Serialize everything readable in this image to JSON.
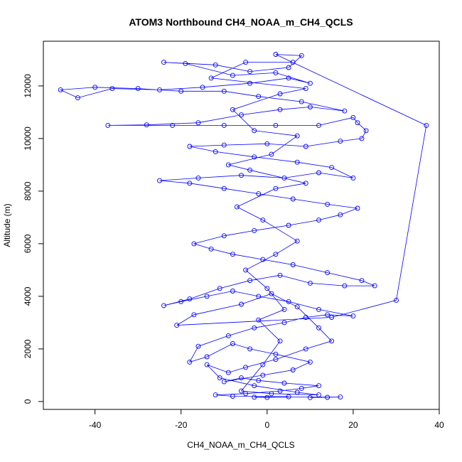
{
  "chart_data": {
    "type": "scatter",
    "title": "ATOM3 Northbound CH4_NOAA_m_CH4_QCLS",
    "xlabel": "CH4_NOAA_m_CH4_QCLS",
    "ylabel": "Altitude (m)",
    "xlim": [
      -52,
      40
    ],
    "ylim": [
      -300,
      13700
    ],
    "x_ticks": [
      -40,
      -20,
      0,
      20,
      40
    ],
    "y_ticks": [
      0,
      2000,
      4000,
      6000,
      8000,
      10000,
      12000
    ],
    "marker": "open-circle",
    "connected": true,
    "color": "#0000ff",
    "grid": false,
    "legend": "none",
    "points": [
      [
        10,
        150
      ],
      [
        14,
        160
      ],
      [
        17,
        170
      ],
      [
        -3,
        165
      ],
      [
        0,
        155
      ],
      [
        5,
        180
      ],
      [
        -8,
        200
      ],
      [
        -12,
        250
      ],
      [
        -5,
        300
      ],
      [
        3,
        400
      ],
      [
        8,
        500
      ],
      [
        12,
        600
      ],
      [
        4,
        700
      ],
      [
        -2,
        800
      ],
      [
        -6,
        900
      ],
      [
        -10,
        750
      ],
      [
        -1,
        1000
      ],
      [
        6,
        1200
      ],
      [
        10,
        1500
      ],
      [
        2,
        1800
      ],
      [
        -4,
        2000
      ],
      [
        -8,
        2200
      ],
      [
        -14,
        1700
      ],
      [
        -18,
        1500
      ],
      [
        -16,
        2100
      ],
      [
        -9,
        2500
      ],
      [
        -3,
        2800
      ],
      [
        4,
        3000
      ],
      [
        9,
        3200
      ],
      [
        14,
        3300
      ],
      [
        20,
        3250
      ],
      [
        12,
        3500
      ],
      [
        5,
        3800
      ],
      [
        -2,
        4000
      ],
      [
        -8,
        4200
      ],
      [
        -14,
        4000
      ],
      [
        -20,
        3800
      ],
      [
        -24,
        3650
      ],
      [
        -18,
        3900
      ],
      [
        -11,
        4300
      ],
      [
        -4,
        4600
      ],
      [
        3,
        4800
      ],
      [
        10,
        4500
      ],
      [
        18,
        4400
      ],
      [
        25,
        4400
      ],
      [
        22,
        4600
      ],
      [
        14,
        4900
      ],
      [
        6,
        5200
      ],
      [
        -1,
        5400
      ],
      [
        -8,
        5600
      ],
      [
        -13,
        5800
      ],
      [
        -17,
        6000
      ],
      [
        -10,
        6300
      ],
      [
        -3,
        6500
      ],
      [
        5,
        6700
      ],
      [
        12,
        6900
      ],
      [
        17,
        7100
      ],
      [
        21,
        7350
      ],
      [
        14,
        7500
      ],
      [
        6,
        7700
      ],
      [
        -2,
        7900
      ],
      [
        -10,
        8100
      ],
      [
        -18,
        8300
      ],
      [
        -25,
        8400
      ],
      [
        -16,
        8500
      ],
      [
        -6,
        8600
      ],
      [
        4,
        8500
      ],
      [
        12,
        8700
      ],
      [
        20,
        8500
      ],
      [
        15,
        8900
      ],
      [
        7,
        9100
      ],
      [
        -3,
        9300
      ],
      [
        -12,
        9500
      ],
      [
        -18,
        9700
      ],
      [
        -10,
        9750
      ],
      [
        0,
        9800
      ],
      [
        9,
        9700
      ],
      [
        17,
        9900
      ],
      [
        22,
        10000
      ],
      [
        23,
        10300
      ],
      [
        21,
        10600
      ],
      [
        20,
        10800
      ],
      [
        12,
        10500
      ],
      [
        2,
        10500
      ],
      [
        -10,
        10500
      ],
      [
        -22,
        10500
      ],
      [
        -37,
        10500
      ],
      [
        -28,
        10520
      ],
      [
        -16,
        10600
      ],
      [
        -6,
        10900
      ],
      [
        3,
        11100
      ],
      [
        10,
        11200
      ],
      [
        18,
        11050
      ],
      [
        8,
        11400
      ],
      [
        -2,
        11600
      ],
      [
        -10,
        11800
      ],
      [
        -20,
        11800
      ],
      [
        -30,
        11900
      ],
      [
        -40,
        11950
      ],
      [
        -48,
        11850
      ],
      [
        -44,
        11550
      ],
      [
        -36,
        11900
      ],
      [
        -25,
        11850
      ],
      [
        -15,
        11950
      ],
      [
        -4,
        12100
      ],
      [
        5,
        12300
      ],
      [
        10,
        12100
      ],
      [
        2,
        12500
      ],
      [
        -8,
        12400
      ],
      [
        -19,
        12850
      ],
      [
        -24,
        12900
      ],
      [
        -12,
        12800
      ],
      [
        -4,
        12550
      ],
      [
        5,
        12700
      ],
      [
        8,
        13150
      ],
      [
        2,
        13200
      ],
      [
        37,
        10500
      ],
      [
        30,
        3850
      ],
      [
        15,
        3200
      ],
      [
        -21,
        2900
      ],
      [
        -17,
        3300
      ],
      [
        -6,
        3700
      ],
      [
        1,
        4100
      ],
      [
        7,
        3600
      ],
      [
        12,
        2800
      ],
      [
        15,
        2300
      ],
      [
        9,
        2000
      ],
      [
        2,
        1600
      ],
      [
        -5,
        1300
      ],
      [
        -9,
        1100
      ],
      [
        -14,
        1400
      ],
      [
        -11,
        900
      ],
      [
        -3,
        600
      ],
      [
        7,
        350
      ],
      [
        12,
        250
      ],
      [
        1,
        300
      ],
      [
        -6,
        400
      ],
      [
        -1,
        1400
      ],
      [
        3,
        2300
      ],
      [
        -2,
        3100
      ],
      [
        4,
        3500
      ],
      [
        0,
        4300
      ],
      [
        -5,
        5000
      ],
      [
        2,
        5600
      ],
      [
        7,
        6100
      ],
      [
        -1,
        6900
      ],
      [
        -7,
        7400
      ],
      [
        2,
        8100
      ],
      [
        9,
        8300
      ],
      [
        -4,
        8800
      ],
      [
        -9,
        9000
      ],
      [
        1,
        9400
      ],
      [
        7,
        10100
      ],
      [
        -3,
        10300
      ],
      [
        -8,
        11100
      ],
      [
        3,
        11700
      ],
      [
        9,
        11900
      ],
      [
        -13,
        12300
      ],
      [
        -5,
        12900
      ],
      [
        6,
        12900
      ]
    ]
  }
}
